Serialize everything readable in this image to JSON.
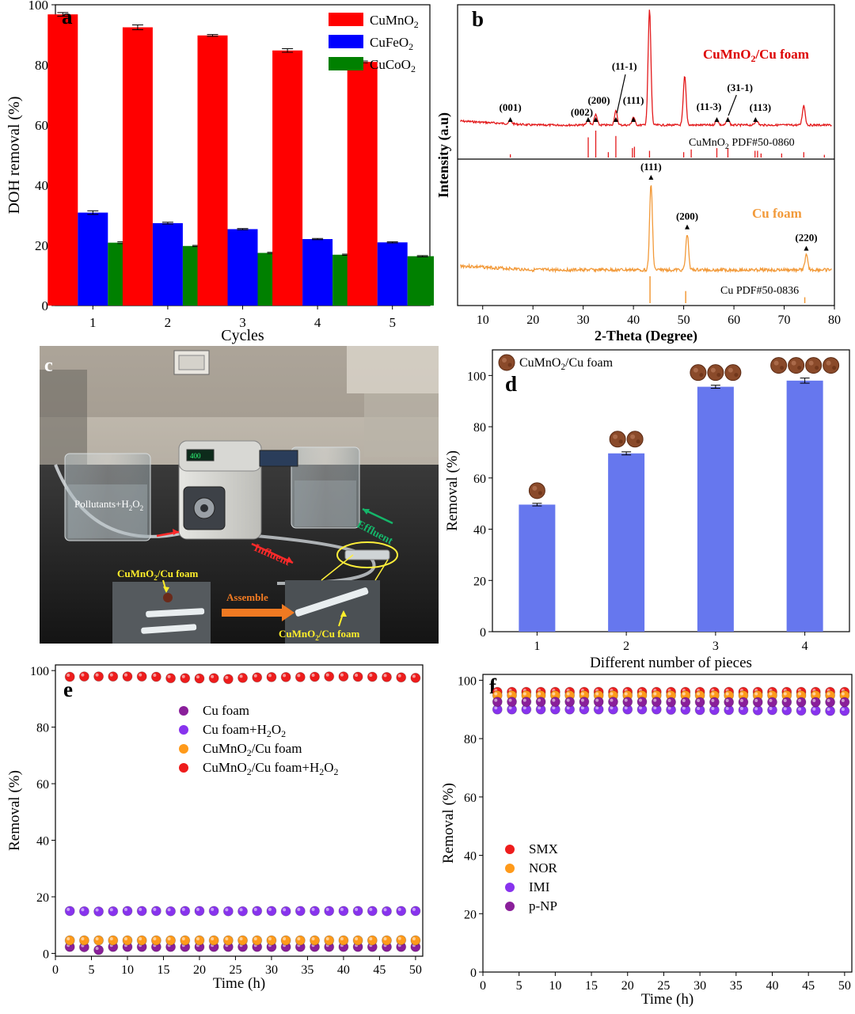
{
  "chart_data": [
    {
      "id": "a",
      "type": "bar",
      "panel_label": "a",
      "xlabel": "Cycles",
      "ylabel": "DOH removal (%)",
      "categories": [
        "1",
        "2",
        "3",
        "4",
        "5"
      ],
      "ylim": [
        0,
        100
      ],
      "yticks": [
        0,
        20,
        40,
        60,
        80,
        100
      ],
      "legend_position": "top-right",
      "series": [
        {
          "name": "CuMnO",
          "sub": "2",
          "color": "#ff0000",
          "values": [
            96.8,
            92.5,
            89.8,
            84.8,
            81.0
          ],
          "errors": [
            0.6,
            0.8,
            0.3,
            0.6,
            0.3
          ]
        },
        {
          "name": "CuFeO",
          "sub": "2",
          "color": "#0000ff",
          "values": [
            30.9,
            27.4,
            25.4,
            22.1,
            21.0
          ],
          "errors": [
            0.6,
            0.3,
            0.2,
            0.2,
            0.2
          ]
        },
        {
          "name": "CuCoO",
          "sub": "2",
          "color": "#008000",
          "values": [
            20.9,
            19.8,
            17.5,
            16.9,
            16.4
          ],
          "errors": [
            0.3,
            0.2,
            0.2,
            0.2,
            0.2
          ]
        }
      ]
    },
    {
      "id": "b",
      "type": "line",
      "panel_label": "b",
      "xlabel": "2-Theta (Degree)",
      "ylabel": "Intensity (a.u)",
      "xlim": [
        5,
        80
      ],
      "xticks": [
        10,
        20,
        30,
        40,
        50,
        60,
        70,
        80
      ],
      "top_label": {
        "pre": "CuMnO",
        "sub": "2",
        "post": "/Cu foam",
        "color": "#dd0000"
      },
      "top_ref": {
        "pre": "CuMnO",
        "sub": "2",
        "post": " PDF#50-0860"
      },
      "bottom_label": {
        "text": "Cu foam",
        "color": "#f29a3a"
      },
      "bottom_ref": {
        "text": "Cu PDF#50-0836"
      },
      "top_peaks": [
        {
          "pos": 15.5,
          "h": 0.03,
          "label": "(001)"
        },
        {
          "pos": 31.0,
          "h": 0.05,
          "label": "(002)"
        },
        {
          "pos": 32.5,
          "h": 0.09,
          "label": "(200)"
        },
        {
          "pos": 36.5,
          "h": 0.12,
          "label": "(11-1)"
        },
        {
          "pos": 40.0,
          "h": 0.07,
          "label": "(111)"
        },
        {
          "pos": 43.2,
          "h": 1.0,
          "label": ""
        },
        {
          "pos": 50.2,
          "h": 0.42,
          "label": ""
        },
        {
          "pos": 56.6,
          "h": 0.05,
          "label": "(11-3)"
        },
        {
          "pos": 58.8,
          "h": 0.05,
          "label": "(31-1)"
        },
        {
          "pos": 64.5,
          "h": 0.04,
          "label": ""
        },
        {
          "pos": 73.9,
          "h": 0.17,
          "label": ""
        }
      ],
      "top_markers": [
        {
          "pos": 15.5,
          "label": "(001)"
        },
        {
          "pos": 31.0,
          "label": "(002)"
        },
        {
          "pos": 32.5,
          "label": "(200)"
        },
        {
          "pos": 36.5,
          "label": "(11-1)"
        },
        {
          "pos": 40.0,
          "label": "(111)"
        },
        {
          "pos": 56.6,
          "label": "(11-3)"
        },
        {
          "pos": 58.8,
          "label": "(31-1)"
        },
        {
          "pos": 64.3,
          "label": "(113)"
        }
      ],
      "top_ref_lines": [
        {
          "pos": 15.5,
          "h": 0.12
        },
        {
          "pos": 31.0,
          "h": 0.75
        },
        {
          "pos": 32.5,
          "h": 1.0
        },
        {
          "pos": 35.0,
          "h": 0.2
        },
        {
          "pos": 36.5,
          "h": 0.8
        },
        {
          "pos": 39.8,
          "h": 0.35
        },
        {
          "pos": 40.2,
          "h": 0.4
        },
        {
          "pos": 43.2,
          "h": 0.25
        },
        {
          "pos": 50.0,
          "h": 0.2
        },
        {
          "pos": 51.5,
          "h": 0.3
        },
        {
          "pos": 56.6,
          "h": 0.35
        },
        {
          "pos": 58.8,
          "h": 0.35
        },
        {
          "pos": 64.2,
          "h": 0.25
        },
        {
          "pos": 64.7,
          "h": 0.25
        },
        {
          "pos": 65.4,
          "h": 0.15
        },
        {
          "pos": 69.5,
          "h": 0.15
        },
        {
          "pos": 73.9,
          "h": 0.2
        },
        {
          "pos": 78.0,
          "h": 0.1
        }
      ],
      "bottom_peaks": [
        {
          "pos": 43.5,
          "h": 1.0,
          "label": "(111)"
        },
        {
          "pos": 50.7,
          "h": 0.42,
          "label": "(200)"
        },
        {
          "pos": 74.4,
          "h": 0.17,
          "label": "(220)"
        }
      ],
      "bottom_ref_lines": [
        {
          "pos": 43.3,
          "h": 1.0
        },
        {
          "pos": 50.4,
          "h": 0.45
        },
        {
          "pos": 74.1,
          "h": 0.22
        }
      ]
    },
    {
      "id": "d",
      "type": "bar",
      "panel_label": "d",
      "xlabel": "Different number of pieces",
      "ylabel": "Removal (%)",
      "categories": [
        "1",
        "2",
        "3",
        "4"
      ],
      "ylim": [
        0,
        110
      ],
      "yticks": [
        0,
        20,
        40,
        60,
        80,
        100
      ],
      "legend": {
        "pre": "CuMnO",
        "sub": "2",
        "post": "/Cu foam"
      },
      "bar_color": "#6677ee",
      "values": [
        49.6,
        69.6,
        95.6,
        98.0
      ],
      "errors": [
        0.5,
        0.6,
        0.6,
        1.0
      ]
    },
    {
      "id": "e",
      "type": "scatter",
      "panel_label": "e",
      "xlabel": "Time (h)",
      "ylabel": "Removal (%)",
      "xlim": [
        0,
        51
      ],
      "ylim": [
        -1,
        102
      ],
      "xticks": [
        0,
        5,
        10,
        15,
        20,
        25,
        30,
        35,
        40,
        45,
        50
      ],
      "yticks": [
        0,
        20,
        40,
        60,
        80,
        100
      ],
      "x": [
        2,
        4,
        6,
        8,
        10,
        12,
        14,
        16,
        18,
        20,
        22,
        24,
        26,
        28,
        30,
        32,
        34,
        36,
        38,
        40,
        42,
        44,
        46,
        48,
        50
      ],
      "series": [
        {
          "name": "Cu foam",
          "color": "#8a1f9a",
          "values": [
            2.3,
            2.2,
            1.2,
            2.3,
            2.3,
            2.3,
            2.3,
            2.3,
            2.3,
            2.3,
            2.3,
            2.3,
            2.3,
            2.3,
            2.3,
            2.3,
            2.3,
            2.3,
            2.3,
            2.3,
            2.3,
            2.3,
            2.3,
            2.3,
            2.3
          ]
        },
        {
          "name": "Cu foam+H",
          "sub": "2",
          "post": "O",
          "sub2": "2",
          "color": "#8833ee",
          "values": [
            15.0,
            14.9,
            14.8,
            14.9,
            15.0,
            15.0,
            15.0,
            14.9,
            15.0,
            15.0,
            15.0,
            14.9,
            14.9,
            15.0,
            15.0,
            14.9,
            15.0,
            15.0,
            15.0,
            15.0,
            15.0,
            15.0,
            14.9,
            15.0,
            15.0
          ]
        },
        {
          "name": "CuMnO",
          "sub": "2",
          "post": "/Cu foam",
          "color": "#ff9a1a",
          "values": [
            4.6,
            4.6,
            4.6,
            4.6,
            4.6,
            4.6,
            4.6,
            4.6,
            4.6,
            4.6,
            4.6,
            4.6,
            4.6,
            4.6,
            4.6,
            4.6,
            4.6,
            4.6,
            4.6,
            4.6,
            4.6,
            4.6,
            4.6,
            4.7,
            4.6
          ]
        },
        {
          "name": "CuMnO",
          "sub": "2",
          "post": "/Cu foam+H",
          "sub2": "2",
          "post2": "O",
          "sub3": "2",
          "color": "#ee1c1c",
          "values": [
            97.8,
            97.9,
            97.9,
            97.9,
            97.9,
            97.9,
            97.8,
            97.3,
            97.3,
            97.2,
            97.3,
            97.0,
            97.4,
            97.6,
            97.7,
            97.7,
            97.7,
            97.8,
            97.9,
            97.9,
            97.8,
            97.8,
            97.7,
            97.6,
            97.4
          ]
        }
      ]
    },
    {
      "id": "f",
      "type": "scatter",
      "panel_label": "f",
      "xlabel": "Time (h)",
      "ylabel": "Removal (%)",
      "xlim": [
        0,
        51
      ],
      "ylim": [
        0,
        102
      ],
      "xticks": [
        0,
        5,
        10,
        15,
        20,
        25,
        30,
        35,
        40,
        45,
        50
      ],
      "yticks": [
        0,
        20,
        40,
        60,
        80,
        100
      ],
      "x": [
        2,
        4,
        6,
        8,
        10,
        12,
        14,
        16,
        18,
        20,
        22,
        24,
        26,
        28,
        30,
        32,
        34,
        36,
        38,
        40,
        42,
        44,
        46,
        48,
        50
      ],
      "series": [
        {
          "name": "SMX",
          "color": "#ee1c1c",
          "values": [
            96.0,
            96.0,
            96.0,
            96.0,
            96.0,
            96.0,
            96.0,
            96.0,
            96.0,
            96.0,
            96.0,
            96.0,
            96.0,
            96.0,
            96.0,
            96.0,
            96.0,
            96.0,
            96.0,
            96.0,
            96.0,
            96.0,
            96.0,
            96.0,
            96.0
          ]
        },
        {
          "name": "NOR",
          "color": "#ff9a1a",
          "values": [
            94.8,
            94.8,
            94.8,
            94.8,
            94.8,
            94.8,
            94.8,
            94.8,
            94.8,
            94.8,
            94.8,
            94.8,
            94.8,
            94.8,
            94.8,
            94.8,
            94.8,
            94.8,
            94.8,
            94.8,
            94.8,
            94.8,
            94.8,
            94.8,
            94.8
          ]
        },
        {
          "name": "IMI",
          "color": "#8833ee",
          "values": [
            90.0,
            90.0,
            90.0,
            90.0,
            90.0,
            90.0,
            90.0,
            90.0,
            90.0,
            90.0,
            90.0,
            90.0,
            89.9,
            89.9,
            89.8,
            89.8,
            89.8,
            89.8,
            89.7,
            89.8,
            89.7,
            89.6,
            89.6,
            89.5,
            89.5
          ]
        },
        {
          "name": "p-NP",
          "color": "#8a1f9a",
          "values": [
            92.6,
            92.6,
            92.6,
            92.6,
            92.6,
            92.6,
            92.6,
            92.6,
            92.6,
            92.6,
            92.6,
            92.6,
            92.5,
            92.5,
            92.5,
            92.5,
            92.5,
            92.5,
            92.5,
            92.5,
            92.5,
            92.5,
            92.5,
            92.5,
            92.5
          ]
        }
      ]
    }
  ],
  "photo_panel": {
    "panel_label": "c",
    "labels": {
      "pollutants": "Pollutants+H",
      "pollutants_sub": "2",
      "pollutants_post": "O",
      "pollutants_sub2": "2",
      "effluent": "Effluent",
      "influent": "Influent",
      "assemble": "Assemble",
      "cumno_a": "CuMnO",
      "cumno_a_sub": "2",
      "cumno_a_post": "/Cu foam",
      "cumno_b": "CuMnO",
      "cumno_b_sub": "2",
      "cumno_b_post": "/Cu foam",
      "pump_display": "400"
    }
  }
}
